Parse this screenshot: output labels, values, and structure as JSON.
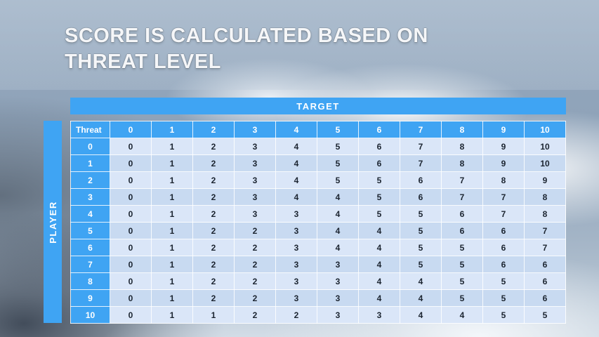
{
  "title": "SCORE IS CALCULATED BASED ON THREAT LEVEL",
  "table": {
    "target_label": "TARGET",
    "player_label": "PLAYER",
    "corner_label": "Threat"
  },
  "chart_data": {
    "type": "table",
    "title": "SCORE IS CALCULATED BASED ON THREAT LEVEL",
    "column_group_label": "TARGET",
    "row_group_label": "PLAYER",
    "corner_label": "Threat",
    "columns": [
      "0",
      "1",
      "2",
      "3",
      "4",
      "5",
      "6",
      "7",
      "8",
      "9",
      "10"
    ],
    "row_headers": [
      "0",
      "1",
      "2",
      "3",
      "4",
      "5",
      "6",
      "7",
      "8",
      "9",
      "10"
    ],
    "rows": [
      [
        0,
        1,
        2,
        3,
        4,
        5,
        6,
        7,
        8,
        9,
        10
      ],
      [
        0,
        1,
        2,
        3,
        4,
        5,
        6,
        7,
        8,
        9,
        10
      ],
      [
        0,
        1,
        2,
        3,
        4,
        5,
        5,
        6,
        7,
        8,
        9
      ],
      [
        0,
        1,
        2,
        3,
        4,
        4,
        5,
        6,
        7,
        7,
        8
      ],
      [
        0,
        1,
        2,
        3,
        3,
        4,
        5,
        5,
        6,
        7,
        8
      ],
      [
        0,
        1,
        2,
        2,
        3,
        4,
        4,
        5,
        6,
        6,
        7
      ],
      [
        0,
        1,
        2,
        2,
        3,
        4,
        4,
        5,
        5,
        6,
        7
      ],
      [
        0,
        1,
        2,
        2,
        3,
        3,
        4,
        5,
        5,
        6,
        6
      ],
      [
        0,
        1,
        2,
        2,
        3,
        3,
        4,
        4,
        5,
        5,
        6
      ],
      [
        0,
        1,
        2,
        2,
        3,
        3,
        4,
        4,
        5,
        5,
        6
      ],
      [
        0,
        1,
        1,
        2,
        2,
        3,
        3,
        4,
        4,
        5,
        5
      ]
    ]
  },
  "colors": {
    "accent_blue": "#3FA4F3",
    "row_band_light": "#DAE6F8",
    "row_band_dark": "#C8DAF1",
    "cell_text": "#1B2430",
    "title_text": "#F5F6F8"
  }
}
